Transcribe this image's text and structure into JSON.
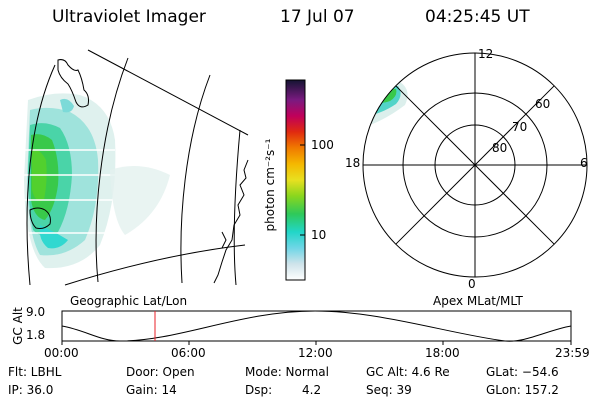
{
  "header": {
    "title": "Ultraviolet Imager",
    "date": "17 Jul 07",
    "time": "04:25:45 UT"
  },
  "colorbar": {
    "label": "photon cm⁻²s⁻¹",
    "ticks": [
      "100",
      "10"
    ]
  },
  "polar_plot": {
    "mlt_labels": [
      "12",
      "18",
      "6",
      "0"
    ],
    "lat_labels": [
      "60",
      "70",
      "80"
    ]
  },
  "map_labels": {
    "geographic": "Geographic Lat/Lon",
    "apex": "Apex MLat/MLT"
  },
  "altitude_plot": {
    "ylabel": "GC Alt",
    "ytick_top": "9.0",
    "ytick_bottom": "1.8",
    "xticks": [
      "00:00",
      "06:00",
      "12:00",
      "18:00",
      "23:59"
    ]
  },
  "info": {
    "flt": "Flt: LBHL",
    "ip": "IP: 36.0",
    "door": "Door: Open",
    "gain": "Gain: 14",
    "mode": "Mode: Normal",
    "dsp_label": "Dsp:",
    "dsp_value": "4.2",
    "gc_alt": "GC Alt: 4.6 Re",
    "seq": "Seq: 39",
    "glat": "GLat: −54.6",
    "glon": "GLon: 157.2"
  },
  "colors": {
    "current_time_marker": "#e8202a",
    "aurora_green": "#33cc44",
    "aurora_cyan": "#33dddd",
    "aurora_pale": "#cfe8e4"
  }
}
